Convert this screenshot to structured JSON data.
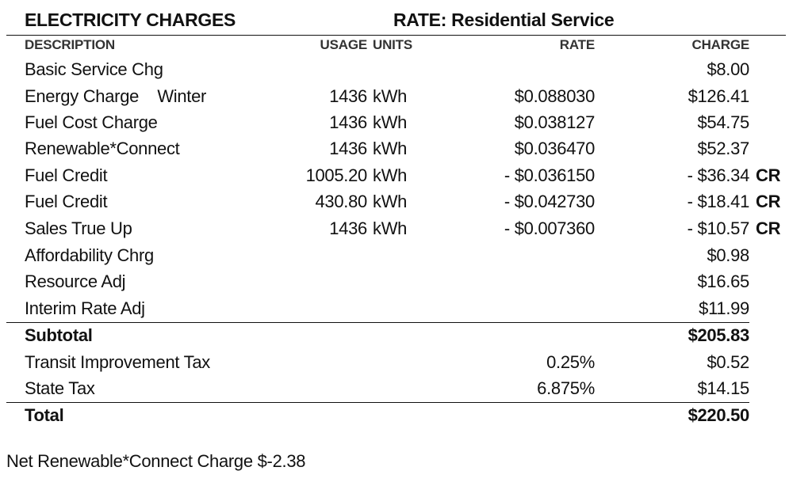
{
  "header": {
    "title": "ELECTRICITY CHARGES",
    "rate": "RATE: Residential Service"
  },
  "columns": {
    "description": "DESCRIPTION",
    "usage": "USAGE",
    "units": "UNITS",
    "rate": "RATE",
    "charge": "CHARGE"
  },
  "rows": [
    {
      "description": "Basic Service Chg",
      "usage": "",
      "units": "",
      "rate": "",
      "charge": "$8.00",
      "flag": ""
    },
    {
      "description": "Energy Charge    Winter",
      "usage": "1436",
      "units": "kWh",
      "rate": "$0.088030",
      "charge": "$126.41",
      "flag": ""
    },
    {
      "description": "Fuel Cost Charge",
      "usage": "1436",
      "units": "kWh",
      "rate": "$0.038127",
      "charge": "$54.75",
      "flag": ""
    },
    {
      "description": "Renewable*Connect",
      "usage": "1436",
      "units": "kWh",
      "rate": "$0.036470",
      "charge": "$52.37",
      "flag": ""
    },
    {
      "description": "Fuel Credit",
      "usage": "1005.20",
      "units": "kWh",
      "rate": "- $0.036150",
      "charge": "- $36.34",
      "flag": "CR"
    },
    {
      "description": "Fuel Credit",
      "usage": "430.80",
      "units": "kWh",
      "rate": "- $0.042730",
      "charge": "- $18.41",
      "flag": "CR"
    },
    {
      "description": "Sales True Up",
      "usage": "1436",
      "units": "kWh",
      "rate": "- $0.007360",
      "charge": "- $10.57",
      "flag": "CR"
    },
    {
      "description": "Affordability Chrg",
      "usage": "",
      "units": "",
      "rate": "",
      "charge": "$0.98",
      "flag": ""
    },
    {
      "description": "Resource Adj",
      "usage": "",
      "units": "",
      "rate": "",
      "charge": "$16.65",
      "flag": ""
    },
    {
      "description": "Interim Rate Adj",
      "usage": "",
      "units": "",
      "rate": "",
      "charge": "$11.99",
      "flag": ""
    }
  ],
  "subtotal": {
    "label": "Subtotal",
    "charge": "$205.83"
  },
  "taxes": [
    {
      "description": "Transit Improvement Tax",
      "rate": "0.25%",
      "charge": "$0.52"
    },
    {
      "description": "State Tax",
      "rate": "6.875%",
      "charge": "$14.15"
    }
  ],
  "total": {
    "label": "Total",
    "charge": "$220.50"
  },
  "footer": {
    "note": "Net Renewable*Connect Charge  $-2.38"
  }
}
